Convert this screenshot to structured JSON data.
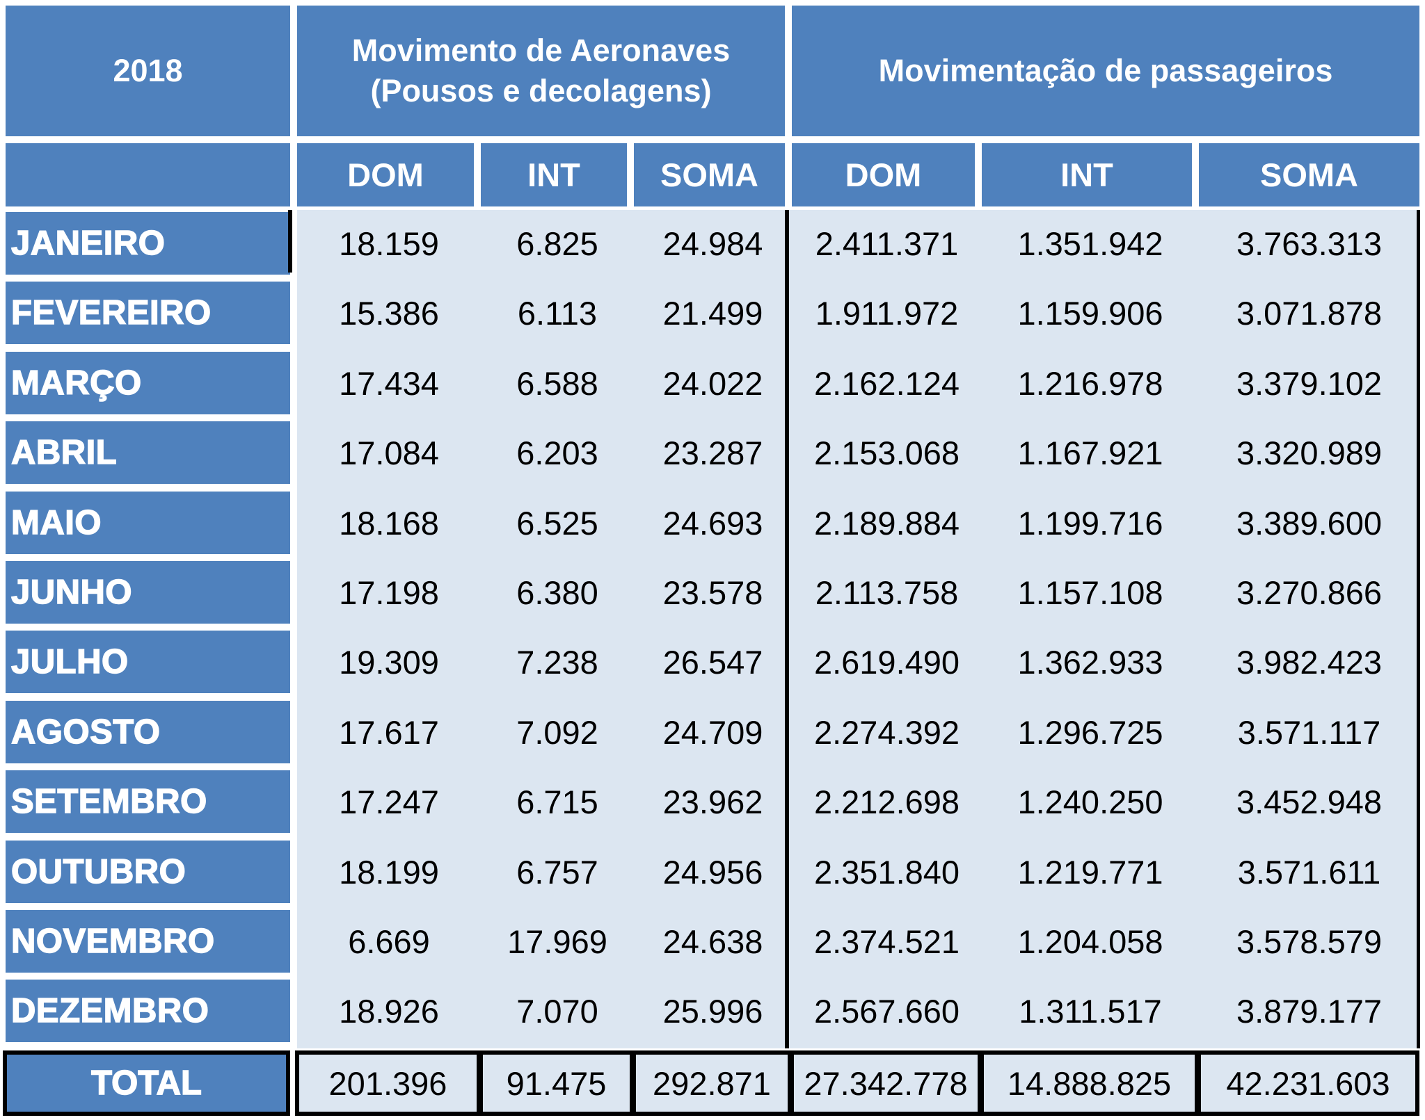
{
  "chart_data": {
    "type": "table",
    "year_label": "2018",
    "group_headers": [
      "Movimento de Aeronaves (Pousos e decolagens)",
      "Movimentação de passageiros"
    ],
    "group_header_lines": [
      [
        "Movimento de Aeronaves",
        "(Pousos e decolagens)"
      ],
      [
        "Movimentação de passageiros"
      ]
    ],
    "subheaders": [
      "DOM",
      "INT",
      "SOMA",
      "DOM",
      "INT",
      "SOMA"
    ],
    "rows": [
      {
        "month": "JANEIRO",
        "values": [
          "18.159",
          "6.825",
          "24.984",
          "2.411.371",
          "1.351.942",
          "3.763.313"
        ]
      },
      {
        "month": "FEVEREIRO",
        "values": [
          "15.386",
          "6.113",
          "21.499",
          "1.911.972",
          "1.159.906",
          "3.071.878"
        ]
      },
      {
        "month": "MARÇO",
        "values": [
          "17.434",
          "6.588",
          "24.022",
          "2.162.124",
          "1.216.978",
          "3.379.102"
        ]
      },
      {
        "month": "ABRIL",
        "values": [
          "17.084",
          "6.203",
          "23.287",
          "2.153.068",
          "1.167.921",
          "3.320.989"
        ]
      },
      {
        "month": "MAIO",
        "values": [
          "18.168",
          "6.525",
          "24.693",
          "2.189.884",
          "1.199.716",
          "3.389.600"
        ]
      },
      {
        "month": "JUNHO",
        "values": [
          "17.198",
          "6.380",
          "23.578",
          "2.113.758",
          "1.157.108",
          "3.270.866"
        ]
      },
      {
        "month": "JULHO",
        "values": [
          "19.309",
          "7.238",
          "26.547",
          "2.619.490",
          "1.362.933",
          "3.982.423"
        ]
      },
      {
        "month": "AGOSTO",
        "values": [
          "17.617",
          "7.092",
          "24.709",
          "2.274.392",
          "1.296.725",
          "3.571.117"
        ]
      },
      {
        "month": "SETEMBRO",
        "values": [
          "17.247",
          "6.715",
          "23.962",
          "2.212.698",
          "1.240.250",
          "3.452.948"
        ]
      },
      {
        "month": "OUTUBRO",
        "values": [
          "18.199",
          "6.757",
          "24.956",
          "2.351.840",
          "1.219.771",
          "3.571.611"
        ]
      },
      {
        "month": "NOVEMBRO",
        "values": [
          "6.669",
          "17.969",
          "24.638",
          "2.374.521",
          "1.204.058",
          "3.578.579"
        ]
      },
      {
        "month": "DEZEMBRO",
        "values": [
          "18.926",
          "7.070",
          "25.996",
          "2.567.660",
          "1.311.517",
          "3.879.177"
        ]
      }
    ],
    "total": {
      "label": "TOTAL",
      "values": [
        "201.396",
        "91.475",
        "292.871",
        "27.342.778",
        "14.888.825",
        "42.231.603"
      ]
    }
  },
  "colors": {
    "header_blue": "#4f81bd",
    "data_fill": "#dce6f1",
    "header_text": "#ffffff",
    "border": "#000000"
  }
}
